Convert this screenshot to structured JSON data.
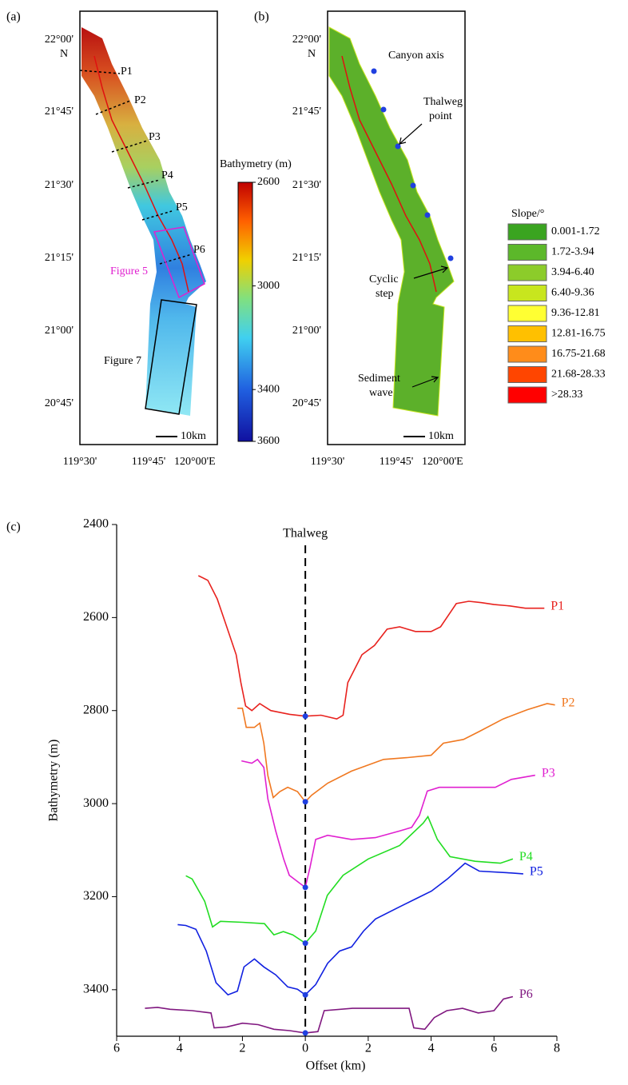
{
  "maps": {
    "lat_labels": [
      "22°00'",
      "21°45'",
      "21°30'",
      "21°15'",
      "21°00'",
      "20°45'"
    ],
    "north": "N",
    "lon_labels": [
      "119°30'",
      "119°45'",
      "120°00'E"
    ],
    "scale": "10km",
    "panel_a": {
      "label": "(a)",
      "profiles": [
        "P1",
        "P2",
        "P3",
        "P4",
        "P5",
        "P6"
      ],
      "box_5": "Figure 5",
      "box_7": "Figure 7",
      "colorbar": {
        "title": "Bathymetry (m)",
        "range": [
          2600,
          3600
        ],
        "ticks": [
          2600,
          3000,
          3400,
          3600
        ]
      }
    },
    "panel_b": {
      "label": "(b)",
      "annotations": {
        "canyon_axis": "Canyon axis",
        "thalweg_point": [
          "Thalweg",
          "point"
        ],
        "cyclic_step": [
          "Cyclic",
          "step"
        ],
        "sediment_wave": [
          "Sediment",
          "wave"
        ]
      },
      "legend": {
        "title": "Slope/°",
        "labels": [
          "0.001-1.72",
          "1.72-3.94",
          "3.94-6.40",
          "6.40-9.36",
          "9.36-12.81",
          "12.81-16.75",
          "16.75-21.68",
          "21.68-28.33",
          ">28.33"
        ],
        "colors": [
          "#3aa420",
          "#5cb82a",
          "#8ccc2a",
          "#c8e61e",
          "#ffff33",
          "#ffc000",
          "#ff8c1a",
          "#ff4500",
          "#ff0000"
        ]
      }
    }
  },
  "chart_data": {
    "type": "line",
    "panel_label": "(c)",
    "x_label": "Offset (km)",
    "y_label": "Bathymetry (m)",
    "xlim": [
      -6,
      8
    ],
    "ylim": [
      2400,
      3500
    ],
    "y_inverted": true,
    "xticks": [
      {
        "value": -6,
        "label": "6"
      },
      {
        "value": -4,
        "label": "4"
      },
      {
        "value": -2,
        "label": "2"
      },
      0,
      2,
      4,
      6,
      8
    ],
    "yticks": [
      2400,
      2600,
      2800,
      3000,
      3200,
      3400
    ],
    "thalweg": {
      "label": "Thalweg",
      "x": 0
    },
    "thalweg_marker_color": "#2040e0",
    "series": [
      {
        "name": "P1",
        "color": "#e8221e",
        "x": [
          -3.4,
          -3.1,
          -2.8,
          -2.5,
          -2.2,
          -2.05,
          -1.9,
          -1.7,
          -1.45,
          -1.1,
          -0.5,
          0,
          0.5,
          1.0,
          1.2,
          1.35,
          1.8,
          2.2,
          2.6,
          3.0,
          3.5,
          4.0,
          4.3,
          4.8,
          5.2,
          5.6,
          6.0,
          6.5,
          7.0,
          7.6
        ],
        "values": [
          2510,
          2520,
          2560,
          2620,
          2680,
          2740,
          2790,
          2800,
          2785,
          2800,
          2808,
          2812,
          2810,
          2818,
          2810,
          2740,
          2680,
          2660,
          2625,
          2620,
          2630,
          2630,
          2620,
          2570,
          2565,
          2568,
          2572,
          2575,
          2580,
          2580
        ]
      },
      {
        "name": "P2",
        "color": "#f07820",
        "x": [
          -2.16,
          -2.0,
          -1.88,
          -1.62,
          -1.45,
          -1.32,
          -1.19,
          -1.02,
          -0.81,
          -0.56,
          -0.25,
          0,
          0.2,
          0.71,
          1.47,
          2.49,
          3.25,
          4.0,
          4.39,
          5.03,
          5.53,
          6.29,
          7.06,
          7.69,
          7.94
        ],
        "values": [
          2795,
          2795,
          2836,
          2836,
          2827,
          2870,
          2940,
          2987,
          2974,
          2965,
          2974,
          2996,
          2982,
          2956,
          2930,
          2905,
          2901,
          2896,
          2870,
          2862,
          2845,
          2818,
          2798,
          2785,
          2788
        ]
      },
      {
        "name": "P3",
        "color": "#e020d0",
        "x": [
          -2.03,
          -1.7,
          -1.52,
          -1.32,
          -1.19,
          -0.94,
          -0.69,
          -0.51,
          -0.18,
          0,
          0.15,
          0.33,
          0.71,
          1.47,
          2.23,
          2.99,
          3.38,
          3.63,
          3.88,
          4.26,
          5.03,
          6.04,
          6.55,
          7.31
        ],
        "values": [
          2908,
          2913,
          2905,
          2922,
          2990,
          3059,
          3119,
          3154,
          3171,
          3180,
          3137,
          3077,
          3068,
          3077,
          3073,
          3059,
          3051,
          3025,
          2973,
          2965,
          2965,
          2965,
          2948,
          2939
        ]
      },
      {
        "name": "P4",
        "color": "#22dd22",
        "x": [
          -3.8,
          -3.6,
          -3.2,
          -2.95,
          -2.7,
          -2.0,
          -1.3,
          -1.0,
          -0.7,
          -0.4,
          0,
          0.33,
          0.7,
          1.2,
          2.0,
          3.0,
          3.75,
          3.9,
          4.2,
          4.6,
          5.4,
          6.2,
          6.6
        ],
        "values": [
          3155,
          3162,
          3210,
          3265,
          3253,
          3255,
          3258,
          3282,
          3275,
          3282,
          3300,
          3274,
          3197,
          3154,
          3119,
          3090,
          3042,
          3028,
          3077,
          3114,
          3124,
          3128,
          3119
        ]
      },
      {
        "name": "P5",
        "color": "#1020e0",
        "x": [
          -4.06,
          -3.8,
          -3.48,
          -3.15,
          -2.84,
          -2.46,
          -2.16,
          -1.95,
          -1.62,
          -1.32,
          -0.94,
          -0.56,
          -0.25,
          0,
          0.33,
          0.71,
          1.09,
          1.47,
          1.85,
          2.23,
          2.99,
          3.5,
          4.01,
          4.52,
          5.08,
          5.53,
          6.55,
          6.93
        ],
        "values": [
          3260,
          3262,
          3270,
          3317,
          3385,
          3411,
          3403,
          3351,
          3334,
          3351,
          3368,
          3394,
          3399,
          3411,
          3389,
          3343,
          3317,
          3308,
          3274,
          3248,
          3222,
          3205,
          3188,
          3162,
          3128,
          3145,
          3149,
          3151
        ]
      },
      {
        "name": "P6",
        "color": "#801880",
        "x": [
          -5.1,
          -4.7,
          -4.3,
          -3.6,
          -3.0,
          -2.9,
          -2.5,
          -2.0,
          -1.5,
          -1.0,
          -0.5,
          0,
          0.4,
          0.6,
          1.5,
          2.5,
          3.3,
          3.45,
          3.8,
          4.1,
          4.5,
          5.0,
          5.5,
          6.0,
          6.3,
          6.6
        ],
        "values": [
          3440,
          3438,
          3442,
          3445,
          3450,
          3482,
          3480,
          3472,
          3475,
          3485,
          3488,
          3493,
          3490,
          3445,
          3440,
          3440,
          3440,
          3482,
          3485,
          3460,
          3445,
          3440,
          3450,
          3445,
          3420,
          3415
        ]
      }
    ]
  }
}
